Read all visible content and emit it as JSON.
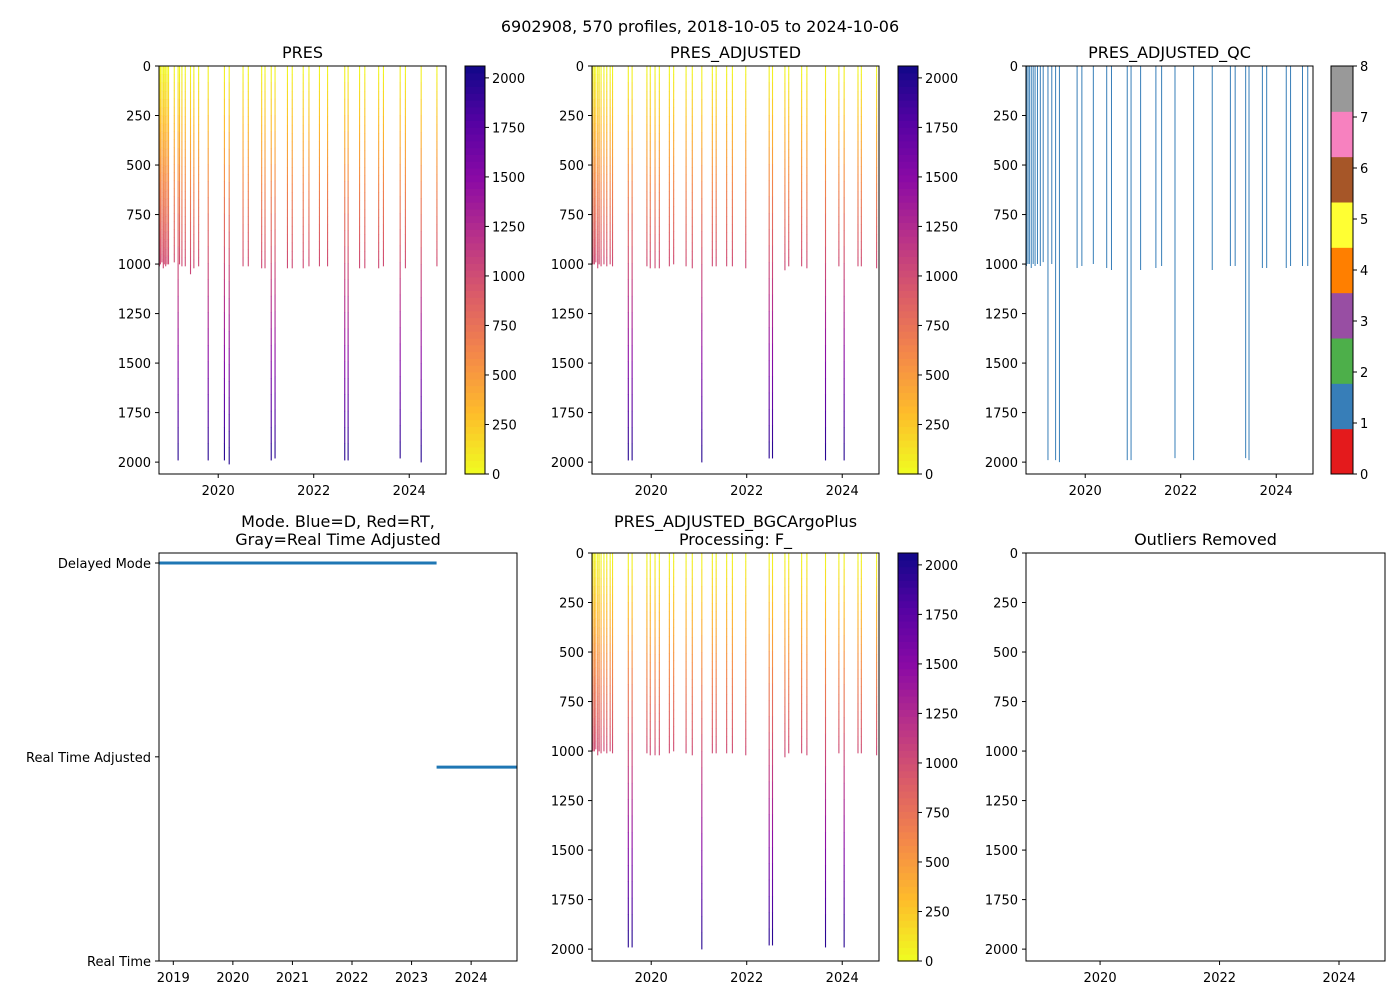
{
  "figure": {
    "suptitle": "6902908, 570 profiles, 2018-10-05 to 2024-10-06"
  },
  "chart_data": [
    {
      "id": "pres",
      "type": "heatmap",
      "title": "PRES",
      "xlim": [
        2018.76,
        2024.77
      ],
      "ylim": [
        2060,
        0
      ],
      "xticks": [
        2020,
        2022,
        2024
      ],
      "xtick_labels": [
        "2020",
        "2022",
        "2024"
      ],
      "yticks": [
        0,
        250,
        500,
        750,
        1000,
        1250,
        1500,
        1750,
        2000
      ],
      "ytick_labels": [
        "0",
        "250",
        "500",
        "750",
        "1000",
        "1250",
        "1500",
        "1750",
        "2000"
      ],
      "colorbar": {
        "colormap": "plasma_r",
        "range": [
          0,
          2060
        ],
        "ticks": [
          0,
          250,
          500,
          750,
          1000,
          1250,
          1500,
          1750,
          2000
        ],
        "tick_labels": [
          "0",
          "250",
          "500",
          "750",
          "1000",
          "1250",
          "1500",
          "1750",
          "2000"
        ]
      },
      "color_mode": "depth",
      "profiles": [
        [
          2018.77,
          1010
        ],
        [
          2018.79,
          1000
        ],
        [
          2018.82,
          990
        ],
        [
          2018.85,
          1020
        ],
        [
          2018.87,
          1000
        ],
        [
          2018.9,
          1010
        ],
        [
          2018.93,
          1000
        ],
        [
          2018.96,
          1000
        ],
        [
          2019.08,
          990
        ],
        [
          2019.16,
          1990
        ],
        [
          2019.19,
          1000
        ],
        [
          2019.24,
          1010
        ],
        [
          2019.31,
          1010
        ],
        [
          2019.42,
          1050
        ],
        [
          2019.49,
          1020
        ],
        [
          2019.59,
          1010
        ],
        [
          2019.79,
          1990
        ],
        [
          2020.13,
          1990
        ],
        [
          2020.23,
          2010
        ],
        [
          2020.52,
          1010
        ],
        [
          2020.63,
          1010
        ],
        [
          2020.91,
          1020
        ],
        [
          2020.98,
          1020
        ],
        [
          2021.11,
          1990
        ],
        [
          2021.19,
          1980
        ],
        [
          2021.45,
          1020
        ],
        [
          2021.55,
          1020
        ],
        [
          2021.78,
          1020
        ],
        [
          2021.9,
          1010
        ],
        [
          2022.12,
          1010
        ],
        [
          2022.29,
          1010
        ],
        [
          2022.65,
          1990
        ],
        [
          2022.72,
          1990
        ],
        [
          2022.96,
          1020
        ],
        [
          2023.07,
          1020
        ],
        [
          2023.36,
          1020
        ],
        [
          2023.46,
          1010
        ],
        [
          2023.81,
          1980
        ],
        [
          2023.92,
          1020
        ],
        [
          2024.25,
          2000
        ],
        [
          2024.58,
          1010
        ]
      ]
    },
    {
      "id": "pres-adjusted",
      "type": "heatmap",
      "title": "PRES_ADJUSTED",
      "xlim": [
        2018.76,
        2024.77
      ],
      "ylim": [
        2060,
        0
      ],
      "xticks": [
        2020,
        2022,
        2024
      ],
      "xtick_labels": [
        "2020",
        "2022",
        "2024"
      ],
      "yticks": [
        0,
        250,
        500,
        750,
        1000,
        1250,
        1500,
        1750,
        2000
      ],
      "ytick_labels": [
        "0",
        "250",
        "500",
        "750",
        "1000",
        "1250",
        "1500",
        "1750",
        "2000"
      ],
      "colorbar": {
        "colormap": "plasma_r",
        "range": [
          0,
          2060
        ],
        "ticks": [
          0,
          250,
          500,
          750,
          1000,
          1250,
          1500,
          1750,
          2000
        ],
        "tick_labels": [
          "0",
          "250",
          "500",
          "750",
          "1000",
          "1250",
          "1500",
          "1750",
          "2000"
        ]
      },
      "color_mode": "depth",
      "profiles": [
        [
          2018.78,
          1000
        ],
        [
          2018.81,
          1000
        ],
        [
          2018.84,
          990
        ],
        [
          2018.88,
          1020
        ],
        [
          2018.91,
          1000
        ],
        [
          2018.95,
          1010
        ],
        [
          2019.01,
          1000
        ],
        [
          2019.07,
          1010
        ],
        [
          2019.14,
          1000
        ],
        [
          2019.19,
          1010
        ],
        [
          2019.52,
          1990
        ],
        [
          2019.6,
          1990
        ],
        [
          2019.91,
          1010
        ],
        [
          2019.98,
          1020
        ],
        [
          2020.08,
          1020
        ],
        [
          2020.17,
          1020
        ],
        [
          2020.38,
          1010
        ],
        [
          2020.47,
          1000
        ],
        [
          2020.73,
          1010
        ],
        [
          2020.86,
          1020
        ],
        [
          2021.06,
          2000
        ],
        [
          2021.28,
          1010
        ],
        [
          2021.36,
          1010
        ],
        [
          2021.58,
          1010
        ],
        [
          2021.7,
          1010
        ],
        [
          2021.98,
          1020
        ],
        [
          2022.47,
          1980
        ],
        [
          2022.54,
          1980
        ],
        [
          2022.8,
          1030
        ],
        [
          2022.88,
          1010
        ],
        [
          2023.15,
          1010
        ],
        [
          2023.26,
          1020
        ],
        [
          2023.65,
          1990
        ],
        [
          2023.93,
          1010
        ],
        [
          2024.04,
          1990
        ],
        [
          2024.33,
          1010
        ],
        [
          2024.4,
          1010
        ],
        [
          2024.72,
          1020
        ]
      ]
    },
    {
      "id": "pres-adjusted-qc",
      "type": "heatmap",
      "title": "PRES_ADJUSTED_QC",
      "xlim": [
        2018.76,
        2024.77
      ],
      "ylim": [
        2060,
        0
      ],
      "xticks": [
        2020,
        2022,
        2024
      ],
      "xtick_labels": [
        "2020",
        "2022",
        "2024"
      ],
      "yticks": [
        0,
        250,
        500,
        750,
        1000,
        1250,
        1500,
        1750,
        2000
      ],
      "ytick_labels": [
        "0",
        "250",
        "500",
        "750",
        "1000",
        "1250",
        "1500",
        "1750",
        "2000"
      ],
      "colorbar": {
        "colormap": "qc_categorical",
        "range": [
          0,
          8
        ],
        "ticks": [
          0,
          1,
          2,
          3,
          4,
          5,
          6,
          7,
          8
        ],
        "tick_labels": [
          "0",
          "1",
          "2",
          "3",
          "4",
          "5",
          "6",
          "7",
          "8"
        ],
        "colors": [
          "#e41a1c",
          "#377eb8",
          "#4daf4a",
          "#984ea3",
          "#ff7f00",
          "#ffff33",
          "#a65628",
          "#f781bf",
          "#999999"
        ]
      },
      "color_mode": "qc",
      "qc_value": 1,
      "profiles": [
        [
          2018.77,
          1010
        ],
        [
          2018.8,
          1000
        ],
        [
          2018.83,
          1000
        ],
        [
          2018.87,
          1020
        ],
        [
          2018.91,
          1000
        ],
        [
          2018.95,
          1010
        ],
        [
          2019.0,
          1000
        ],
        [
          2019.06,
          1010
        ],
        [
          2019.12,
          990
        ],
        [
          2019.22,
          1990
        ],
        [
          2019.3,
          1000
        ],
        [
          2019.38,
          1990
        ],
        [
          2019.46,
          2000
        ],
        [
          2019.83,
          1020
        ],
        [
          2019.93,
          1010
        ],
        [
          2020.17,
          1000
        ],
        [
          2020.45,
          1020
        ],
        [
          2020.55,
          1030
        ],
        [
          2020.88,
          1990
        ],
        [
          2020.96,
          1990
        ],
        [
          2021.16,
          1030
        ],
        [
          2021.48,
          1020
        ],
        [
          2021.6,
          1010
        ],
        [
          2021.88,
          1980
        ],
        [
          2022.27,
          1990
        ],
        [
          2022.66,
          1030
        ],
        [
          2023.04,
          1010
        ],
        [
          2023.14,
          1010
        ],
        [
          2023.36,
          1980
        ],
        [
          2023.43,
          1990
        ],
        [
          2023.71,
          1020
        ],
        [
          2023.8,
          1020
        ],
        [
          2024.21,
          1020
        ],
        [
          2024.3,
          1010
        ],
        [
          2024.55,
          1010
        ],
        [
          2024.66,
          1010
        ]
      ]
    },
    {
      "id": "mode",
      "type": "line",
      "title": "Mode. Blue=D, Red=RT,\nGray=Real Time Adjusted",
      "xlim": [
        2018.76,
        2024.77
      ],
      "ylim": [
        0,
        1
      ],
      "xticks": [
        2019,
        2020,
        2021,
        2022,
        2023,
        2024
      ],
      "xtick_labels": [
        "2019",
        "2020",
        "2021",
        "2022",
        "2023",
        "2024"
      ],
      "yticks": [
        1,
        0.513,
        0
      ],
      "ytick_labels": [
        "Delayed Mode",
        "Real Time Adjusted",
        "Real Time"
      ],
      "series": [
        {
          "name": "Delayed Mode",
          "color": "#1f77b4",
          "x": [
            2018.76,
            2023.42
          ],
          "y": [
            1,
            1
          ]
        },
        {
          "name": "Real Time Adjusted",
          "color": "#1f77b4",
          "x": [
            2023.42,
            2024.77
          ],
          "y": [
            0.487,
            0.487
          ]
        }
      ]
    },
    {
      "id": "pres-adjusted-bgcargoplus",
      "type": "heatmap",
      "title": "PRES_ADJUSTED_BGCArgoPlus\nProcessing: F_",
      "xlim": [
        2018.76,
        2024.77
      ],
      "ylim": [
        2060,
        0
      ],
      "xticks": [
        2020,
        2022,
        2024
      ],
      "xtick_labels": [
        "2020",
        "2022",
        "2024"
      ],
      "yticks": [
        0,
        250,
        500,
        750,
        1000,
        1250,
        1500,
        1750,
        2000
      ],
      "ytick_labels": [
        "0",
        "250",
        "500",
        "750",
        "1000",
        "1250",
        "1500",
        "1750",
        "2000"
      ],
      "colorbar": {
        "colormap": "plasma_r",
        "range": [
          0,
          2060
        ],
        "ticks": [
          0,
          250,
          500,
          750,
          1000,
          1250,
          1500,
          1750,
          2000
        ],
        "tick_labels": [
          "0",
          "250",
          "500",
          "750",
          "1000",
          "1250",
          "1500",
          "1750",
          "2000"
        ]
      },
      "color_mode": "depth",
      "profiles": [
        [
          2018.78,
          1000
        ],
        [
          2018.81,
          1000
        ],
        [
          2018.84,
          990
        ],
        [
          2018.88,
          1020
        ],
        [
          2018.91,
          1000
        ],
        [
          2018.95,
          1010
        ],
        [
          2019.01,
          1000
        ],
        [
          2019.07,
          1010
        ],
        [
          2019.14,
          1000
        ],
        [
          2019.19,
          1010
        ],
        [
          2019.52,
          1990
        ],
        [
          2019.6,
          1990
        ],
        [
          2019.91,
          1010
        ],
        [
          2019.98,
          1020
        ],
        [
          2020.08,
          1020
        ],
        [
          2020.17,
          1020
        ],
        [
          2020.38,
          1010
        ],
        [
          2020.47,
          1000
        ],
        [
          2020.73,
          1010
        ],
        [
          2020.86,
          1020
        ],
        [
          2021.06,
          2000
        ],
        [
          2021.28,
          1010
        ],
        [
          2021.36,
          1010
        ],
        [
          2021.58,
          1010
        ],
        [
          2021.7,
          1010
        ],
        [
          2021.98,
          1020
        ],
        [
          2022.47,
          1980
        ],
        [
          2022.54,
          1980
        ],
        [
          2022.8,
          1030
        ],
        [
          2022.88,
          1010
        ],
        [
          2023.15,
          1010
        ],
        [
          2023.26,
          1020
        ],
        [
          2023.65,
          1990
        ],
        [
          2023.93,
          1010
        ],
        [
          2024.04,
          1990
        ],
        [
          2024.33,
          1010
        ],
        [
          2024.4,
          1010
        ],
        [
          2024.72,
          1020
        ]
      ]
    },
    {
      "id": "outliers-removed",
      "type": "scatter",
      "title": "Outliers Removed",
      "xlim": [
        2018.76,
        2024.77
      ],
      "ylim": [
        2060,
        0
      ],
      "xticks": [
        2020,
        2022,
        2024
      ],
      "xtick_labels": [
        "2020",
        "2022",
        "2024"
      ],
      "yticks": [
        0,
        250,
        500,
        750,
        1000,
        1250,
        1500,
        1750,
        2000
      ],
      "ytick_labels": [
        "0",
        "250",
        "500",
        "750",
        "1000",
        "1250",
        "1500",
        "1750",
        "2000"
      ],
      "points": []
    }
  ]
}
